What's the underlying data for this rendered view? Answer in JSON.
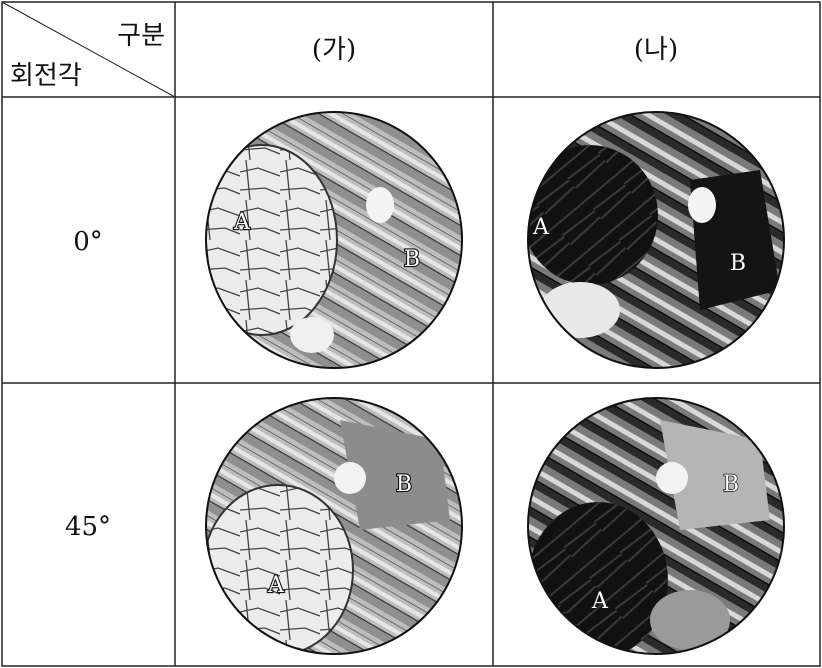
{
  "header": {
    "corner_top": "구분",
    "corner_bottom": "회전각",
    "columns": [
      "(가)",
      "(나)"
    ]
  },
  "rows": [
    {
      "label": "0°",
      "cells": [
        [
          "A",
          "B"
        ],
        [
          "A",
          "B"
        ]
      ]
    },
    {
      "label": "45°",
      "cells": [
        [
          "B",
          "A"
        ],
        [
          "B",
          "A"
        ]
      ]
    }
  ]
}
